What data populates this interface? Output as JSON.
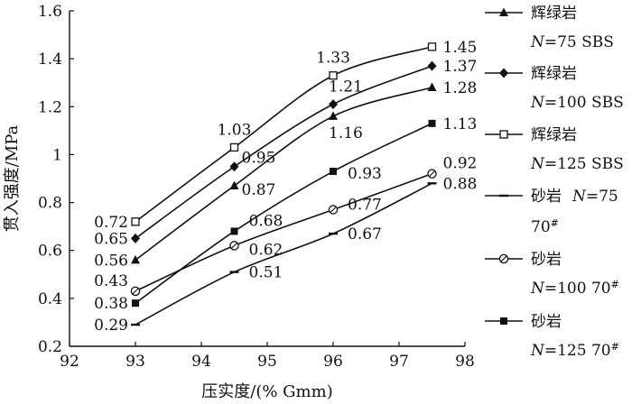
{
  "chart_data": {
    "type": "line",
    "xlabel": "压实度/(% Gmm)",
    "ylabel": "贯入强度/MPa",
    "xlim": [
      92,
      98
    ],
    "ylim": [
      0.2,
      1.6
    ],
    "xticks": [
      "92",
      "93",
      "94",
      "95",
      "96",
      "97",
      "98"
    ],
    "yticks": [
      "0.2",
      "0.4",
      "0.6",
      "0.8",
      "1",
      "1.2",
      "1.4",
      "1.6"
    ],
    "x": [
      93,
      94.5,
      96,
      97.5
    ],
    "series": [
      {
        "name": "辉绿岩",
        "sub": "N=75 SBS",
        "marker": "triangle-filled",
        "values": [
          0.56,
          0.87,
          1.16,
          1.28
        ],
        "labels": [
          "0.56",
          "0.87",
          "1.16",
          "1.28"
        ]
      },
      {
        "name": "辉绿岩",
        "sub": "N=100 SBS",
        "marker": "diamond-filled",
        "values": [
          0.65,
          0.95,
          1.21,
          1.37
        ],
        "labels": [
          "0.65",
          "0.95",
          "1.21",
          "1.37"
        ]
      },
      {
        "name": "辉绿岩",
        "sub": "N=125 SBS",
        "marker": "square-open",
        "values": [
          0.72,
          1.03,
          1.33,
          1.45
        ],
        "labels": [
          "0.72",
          "1.03",
          "1.33",
          "1.45"
        ]
      },
      {
        "name": "砂岩",
        "sub": "N=75",
        "sub2": "70#",
        "marker": "dash",
        "values": [
          0.29,
          0.51,
          0.67,
          0.88
        ],
        "labels": [
          "0.29",
          "0.51",
          "0.67",
          "0.88"
        ]
      },
      {
        "name": "砂岩",
        "sub": "N=100 70#",
        "marker": "circle-slash",
        "values": [
          0.43,
          0.62,
          0.77,
          0.92
        ],
        "labels": [
          "0.43",
          "0.62",
          "0.77",
          "0.92"
        ]
      },
      {
        "name": "砂岩",
        "sub": "N=125 70#",
        "marker": "square-filled",
        "values": [
          0.38,
          0.68,
          0.93,
          1.13
        ],
        "labels": [
          "0.38",
          "0.68",
          "0.93",
          "1.13"
        ]
      }
    ]
  }
}
